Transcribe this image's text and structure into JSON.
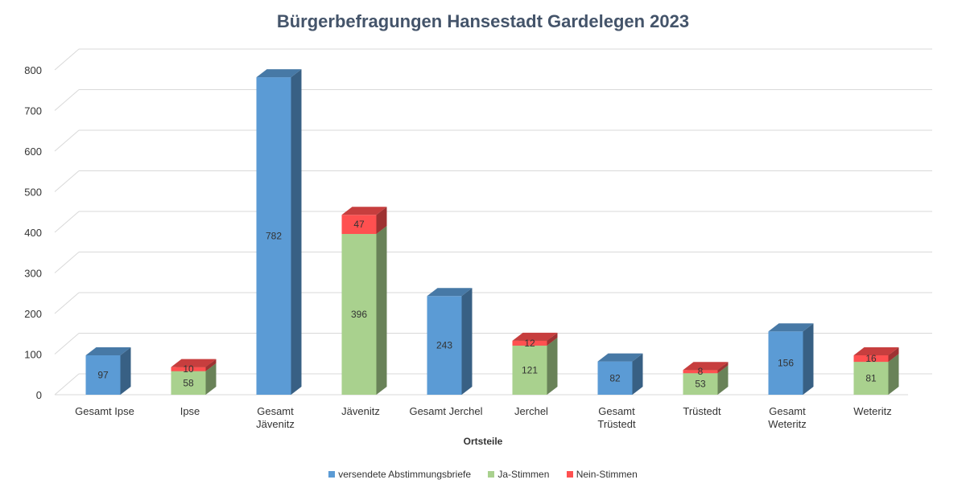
{
  "chart_data": {
    "type": "bar",
    "stacked": true,
    "three_d": true,
    "title": "Bürgerbefragungen Hansestadt Gardelegen 2023",
    "xlabel": "Ortsteile",
    "ylabel": "",
    "ylim": [
      0,
      800
    ],
    "yticks": [
      0,
      100,
      200,
      300,
      400,
      500,
      600,
      700,
      800
    ],
    "grid": true,
    "legend_position": "bottom",
    "categories": [
      [
        "Gesamt Ipse"
      ],
      [
        "Ipse"
      ],
      [
        "Gesamt",
        "Jävenitz"
      ],
      [
        "Jävenitz"
      ],
      [
        "Gesamt Jerchel"
      ],
      [
        "Jerchel"
      ],
      [
        "Gesamt",
        "Trüstedt"
      ],
      [
        "Trüstedt"
      ],
      [
        "Gesamt",
        "Weteritz"
      ],
      [
        "Weteritz"
      ]
    ],
    "series": [
      {
        "name": "versendete Abstimmungsbriefe",
        "color": "#5b9bd5",
        "values": [
          97,
          null,
          782,
          null,
          243,
          null,
          82,
          null,
          156,
          null
        ]
      },
      {
        "name": "Ja-Stimmen",
        "color": "#a9d18e",
        "values": [
          null,
          58,
          null,
          396,
          null,
          121,
          null,
          53,
          null,
          81
        ]
      },
      {
        "name": "Nein-Stimmen",
        "color": "#ff5050",
        "values": [
          null,
          10,
          null,
          47,
          null,
          12,
          null,
          8,
          null,
          16
        ]
      }
    ]
  }
}
